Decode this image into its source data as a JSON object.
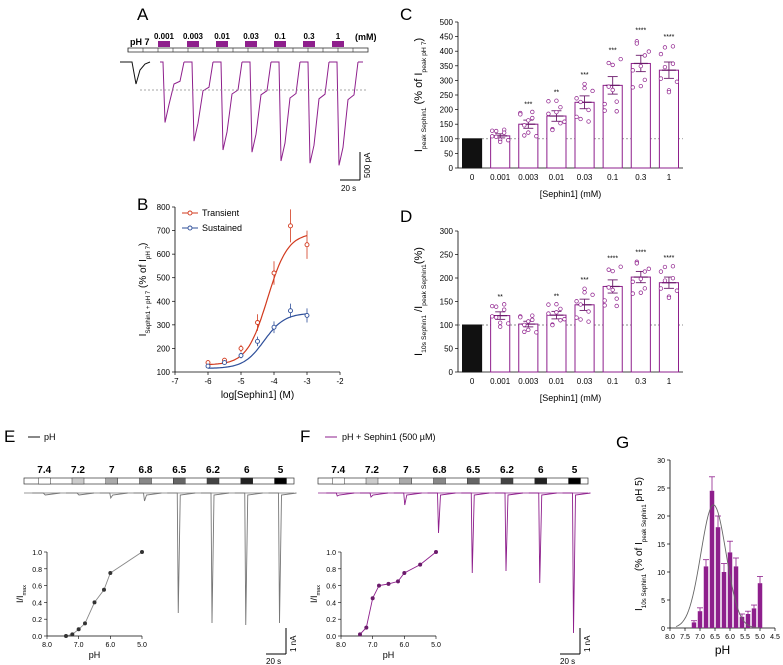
{
  "panel_labels": {
    "a": "A",
    "b": "B",
    "c": "C",
    "d": "D",
    "e": "E",
    "f": "F",
    "g": "G"
  },
  "colors": {
    "purple": "#8e1f8c",
    "purple_dark": "#6b1a6b",
    "red": "#d23a1e",
    "blue": "#2e4f9a",
    "black": "#111111",
    "gray": "#777777"
  },
  "panel_a": {
    "ph_label": "pH 7",
    "concentrations": [
      "0.001",
      "0.003",
      "0.01",
      "0.03",
      "0.1",
      "0.3",
      "1"
    ],
    "unit_label": "(mM)",
    "scale_y": "500 pA",
    "scale_x": "20 s",
    "peak_fractions": [
      0.55,
      0.72,
      0.8,
      0.82,
      0.9,
      0.92,
      0.94
    ]
  },
  "panel_e": {
    "legend": "pH",
    "ph_values": [
      "7.4",
      "7.2",
      "7",
      "6.8",
      "6.5",
      "6.2",
      "6",
      "5"
    ],
    "scale_y": "1 nA",
    "scale_x": "20 s",
    "inset_ylabel": "I/I",
    "inset_ylabel_sub": "max",
    "inset_xlabel": "pH",
    "inset_xticks": [
      "8.0",
      "7.0",
      "6.0",
      "5.0"
    ],
    "inset_yticks": [
      "0.0",
      "0.2",
      "0.4",
      "0.6",
      "0.8",
      "1.0"
    ]
  },
  "panel_f": {
    "legend": "pH + Sephin1 (500 µM)",
    "ph_values": [
      "7.4",
      "7.2",
      "7",
      "6.8",
      "6.5",
      "6.2",
      "6",
      "5"
    ],
    "scale_y": "1 nA",
    "scale_x": "20 s",
    "inset_ylabel": "I/I",
    "inset_ylabel_sub": "max",
    "inset_xlabel": "pH",
    "inset_xticks": [
      "8.0",
      "7.0",
      "6.0",
      "5.0"
    ],
    "inset_yticks": [
      "0.0",
      "0.2",
      "0.4",
      "0.6",
      "0.8",
      "1.0"
    ]
  },
  "chart_data": [
    {
      "id": "C",
      "type": "bar",
      "categories": [
        "0",
        "0.001",
        "0.003",
        "0.01",
        "0.03",
        "0.1",
        "0.3",
        "1"
      ],
      "values": [
        100,
        110,
        150,
        178,
        225,
        283,
        358,
        335
      ],
      "errors": [
        0,
        7,
        14,
        18,
        22,
        30,
        28,
        28
      ],
      "significance": [
        "",
        "",
        "***",
        "**",
        "***",
        "***",
        "****",
        "****"
      ],
      "ylabel": "I",
      "ylabel_sub": "peak Sephin1",
      "ylabel_rest": "(% of I",
      "ylabel_rest_sub": "peak pH 7",
      "ylabel_close": ")",
      "xlabel": "[Sephin1] (mM)",
      "ylim": [
        0,
        500
      ],
      "yticks": [
        "0",
        "50",
        "100",
        "150",
        "200",
        "250",
        "300",
        "350",
        "400",
        "450",
        "500"
      ],
      "reference_line": 100
    },
    {
      "id": "D",
      "type": "bar",
      "categories": [
        "0",
        "0.001",
        "0.003",
        "0.01",
        "0.03",
        "0.1",
        "0.3",
        "1"
      ],
      "values": [
        100,
        120,
        102,
        121,
        143,
        182,
        202,
        190
      ],
      "errors": [
        0,
        8,
        6,
        8,
        12,
        14,
        12,
        12
      ],
      "significance": [
        "",
        "**",
        "",
        "**",
        "***",
        "****",
        "****",
        "****"
      ],
      "ylabel": "I",
      "ylabel_sub": "10s Sephin1",
      "ylabel_rest": "/I",
      "ylabel_rest_sub": "peak Sephin1",
      "ylabel_close": "(%)",
      "xlabel": "[Sephin1] (mM)",
      "ylim": [
        0,
        300
      ],
      "yticks": [
        "0",
        "50",
        "100",
        "150",
        "200",
        "250",
        "300"
      ],
      "reference_line": 100
    },
    {
      "id": "B",
      "type": "line",
      "xlabel": "log[Sephin1] (M)",
      "ylabel": "I",
      "ylabel_sub": "Sephin1 + pH 7",
      "ylabel_rest": "(% of I",
      "ylabel_rest_sub": "pH 7",
      "ylabel_close": ")",
      "xlim": [
        -7,
        -2
      ],
      "ylim": [
        100,
        800
      ],
      "xticks": [
        "-7",
        "-6",
        "-5",
        "-4",
        "-3",
        "-2"
      ],
      "yticks": [
        "100",
        "200",
        "300",
        "400",
        "500",
        "600",
        "700",
        "800"
      ],
      "series": [
        {
          "name": "Transient",
          "x": [
            -6,
            -5.5,
            -5,
            -4.5,
            -4,
            -3.5,
            -3
          ],
          "y": [
            140,
            150,
            200,
            310,
            520,
            720,
            640
          ],
          "err": [
            10,
            10,
            15,
            35,
            50,
            70,
            60
          ]
        },
        {
          "name": "Sustained",
          "x": [
            -6,
            -5.5,
            -5,
            -4.5,
            -4,
            -3.5,
            -3
          ],
          "y": [
            125,
            140,
            170,
            230,
            290,
            360,
            340
          ],
          "err": [
            8,
            10,
            12,
            20,
            25,
            30,
            30
          ]
        }
      ]
    },
    {
      "id": "G",
      "type": "bar",
      "categories": [
        "5.0",
        "5.2",
        "5.4",
        "5.6",
        "5.8",
        "6.0",
        "6.2",
        "6.4",
        "6.6",
        "6.8",
        "7.0",
        "7.2"
      ],
      "x": [
        5.0,
        5.2,
        5.4,
        5.6,
        5.8,
        6.0,
        6.2,
        6.4,
        6.6,
        6.8,
        7.0,
        7.2
      ],
      "values": [
        8,
        3.5,
        2.5,
        2,
        11,
        13.5,
        10,
        18,
        24.5,
        11,
        3,
        1
      ],
      "errors": [
        1.2,
        0.6,
        0.5,
        0.5,
        1.5,
        2,
        1.5,
        2,
        2.5,
        1.2,
        0.6,
        0.3
      ],
      "ylabel": "I",
      "ylabel_sub": "10s Sephin1",
      "ylabel_rest": "(% of I",
      "ylabel_rest_sub": "peak Sephin1",
      "ylabel_close": "pH 5)",
      "xlabel": "pH",
      "xlim": [
        8.0,
        4.5
      ],
      "ylim": [
        0,
        30
      ],
      "xticks": [
        "4.5",
        "5.0",
        "5.5",
        "6.0",
        "6.5",
        "7.0",
        "7.5",
        "8.0"
      ],
      "yticks": [
        "0",
        "5",
        "10",
        "15",
        "20",
        "25",
        "30"
      ]
    },
    {
      "id": "E-inset",
      "type": "scatter",
      "x": [
        7.4,
        7.2,
        7.0,
        6.8,
        6.5,
        6.2,
        6.0,
        5.0
      ],
      "y": [
        0.0,
        0.02,
        0.08,
        0.15,
        0.4,
        0.55,
        0.75,
        1.0
      ]
    },
    {
      "id": "F-inset",
      "type": "scatter",
      "x": [
        7.4,
        7.2,
        7.0,
        6.8,
        6.5,
        6.2,
        6.0,
        5.5,
        5.0
      ],
      "y": [
        0.02,
        0.1,
        0.45,
        0.6,
        0.62,
        0.65,
        0.75,
        0.85,
        1.0
      ]
    }
  ]
}
